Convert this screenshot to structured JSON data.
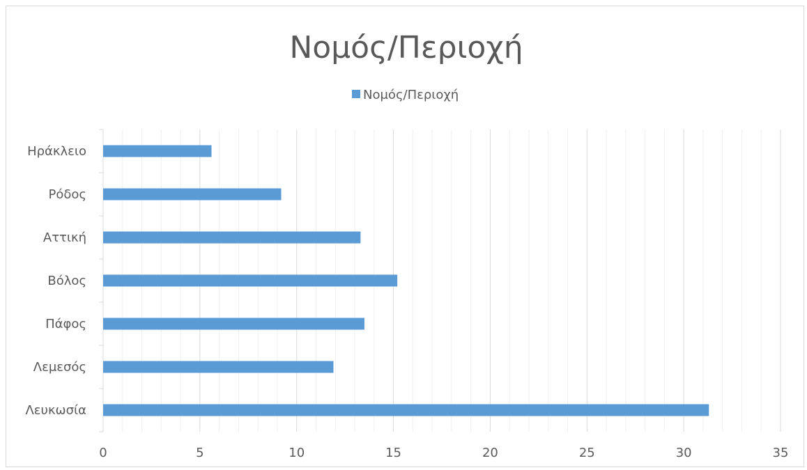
{
  "chart_data": {
    "type": "bar",
    "orientation": "horizontal",
    "title": "Νομός/Περιοχή",
    "categories": [
      "Λευκωσία",
      "Λεμεσός",
      "Πάφος",
      "Βόλος",
      "Αττική",
      "Ρόδος",
      "Ηράκλειο"
    ],
    "series": [
      {
        "name": "Νομός/Περιοχή",
        "values": [
          31.3,
          11.9,
          13.5,
          15.2,
          13.3,
          9.2,
          5.6
        ],
        "color": "#5b9bd5"
      }
    ],
    "xlim": [
      0,
      35
    ],
    "xticks": [
      0,
      5,
      10,
      15,
      20,
      25,
      30,
      35
    ],
    "xlabel": "",
    "ylabel": "",
    "grid": {
      "major": true,
      "minor": true
    },
    "legend": {
      "position": "top"
    }
  }
}
